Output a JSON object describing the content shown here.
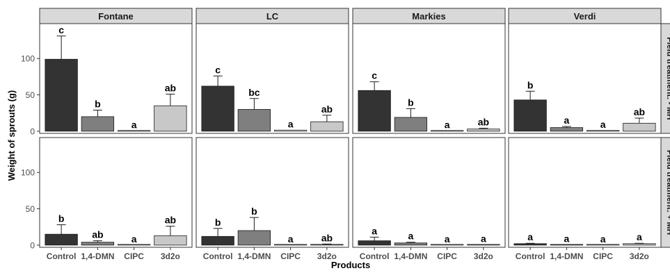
{
  "chart_data": {
    "type": "bar",
    "xlabel": "Products",
    "ylabel": "Weight of sprouts (g)",
    "categories": [
      "Control",
      "1,4-DMN",
      "CIPC",
      "3d2o"
    ],
    "facet_columns": [
      "Fontane",
      "LC",
      "Markies",
      "Verdi"
    ],
    "facet_rows": [
      "Field treatment: - MH",
      "Field treatment: + MH"
    ],
    "yticks": [
      0,
      50,
      100
    ],
    "ylim": [
      -3,
      148
    ],
    "bar_colors": [
      "#333333",
      "#7f7f7f",
      "#ffffff",
      "#c8c8c8"
    ],
    "strip_color": "#d9d9d9",
    "panels": [
      {
        "column": "Fontane",
        "row": "Field treatment: - MH",
        "values": [
          99,
          20,
          0.5,
          35
        ],
        "errors": [
          32,
          9,
          0,
          16
        ],
        "letters": [
          "c",
          "b",
          "a",
          "ab"
        ]
      },
      {
        "column": "LC",
        "row": "Field treatment: - MH",
        "values": [
          62,
          30,
          1.5,
          13
        ],
        "errors": [
          14,
          15,
          0,
          9
        ],
        "letters": [
          "c",
          "bc",
          "a",
          "ab"
        ]
      },
      {
        "column": "Markies",
        "row": "Field treatment: - MH",
        "values": [
          56,
          19,
          0.5,
          3
        ],
        "errors": [
          12,
          12,
          0,
          1
        ],
        "letters": [
          "c",
          "b",
          "a",
          "ab"
        ]
      },
      {
        "column": "Verdi",
        "row": "Field treatment: - MH",
        "values": [
          43,
          5,
          1,
          11
        ],
        "errors": [
          12,
          1.5,
          0,
          7
        ],
        "letters": [
          "b",
          "a",
          "a",
          "ab"
        ]
      },
      {
        "column": "Fontane",
        "row": "Field treatment: + MH",
        "values": [
          15,
          4,
          0,
          13
        ],
        "errors": [
          13,
          2,
          0,
          13
        ],
        "letters": [
          "b",
          "ab",
          "a",
          "ab"
        ]
      },
      {
        "column": "LC",
        "row": "Field treatment: + MH",
        "values": [
          12,
          20,
          0,
          1
        ],
        "errors": [
          11,
          18,
          0,
          0.5
        ],
        "letters": [
          "b",
          "b",
          "a",
          "ab"
        ]
      },
      {
        "column": "Markies",
        "row": "Field treatment: + MH",
        "values": [
          6,
          3,
          0,
          0.5
        ],
        "errors": [
          5,
          1,
          0,
          0
        ],
        "letters": [
          "a",
          "a",
          "a",
          "a"
        ]
      },
      {
        "column": "Verdi",
        "row": "Field treatment: + MH",
        "values": [
          2,
          0.5,
          0,
          2
        ],
        "errors": [
          0.5,
          0,
          0,
          0.5
        ],
        "letters": [
          "a",
          "a",
          "a",
          "a"
        ]
      }
    ]
  }
}
